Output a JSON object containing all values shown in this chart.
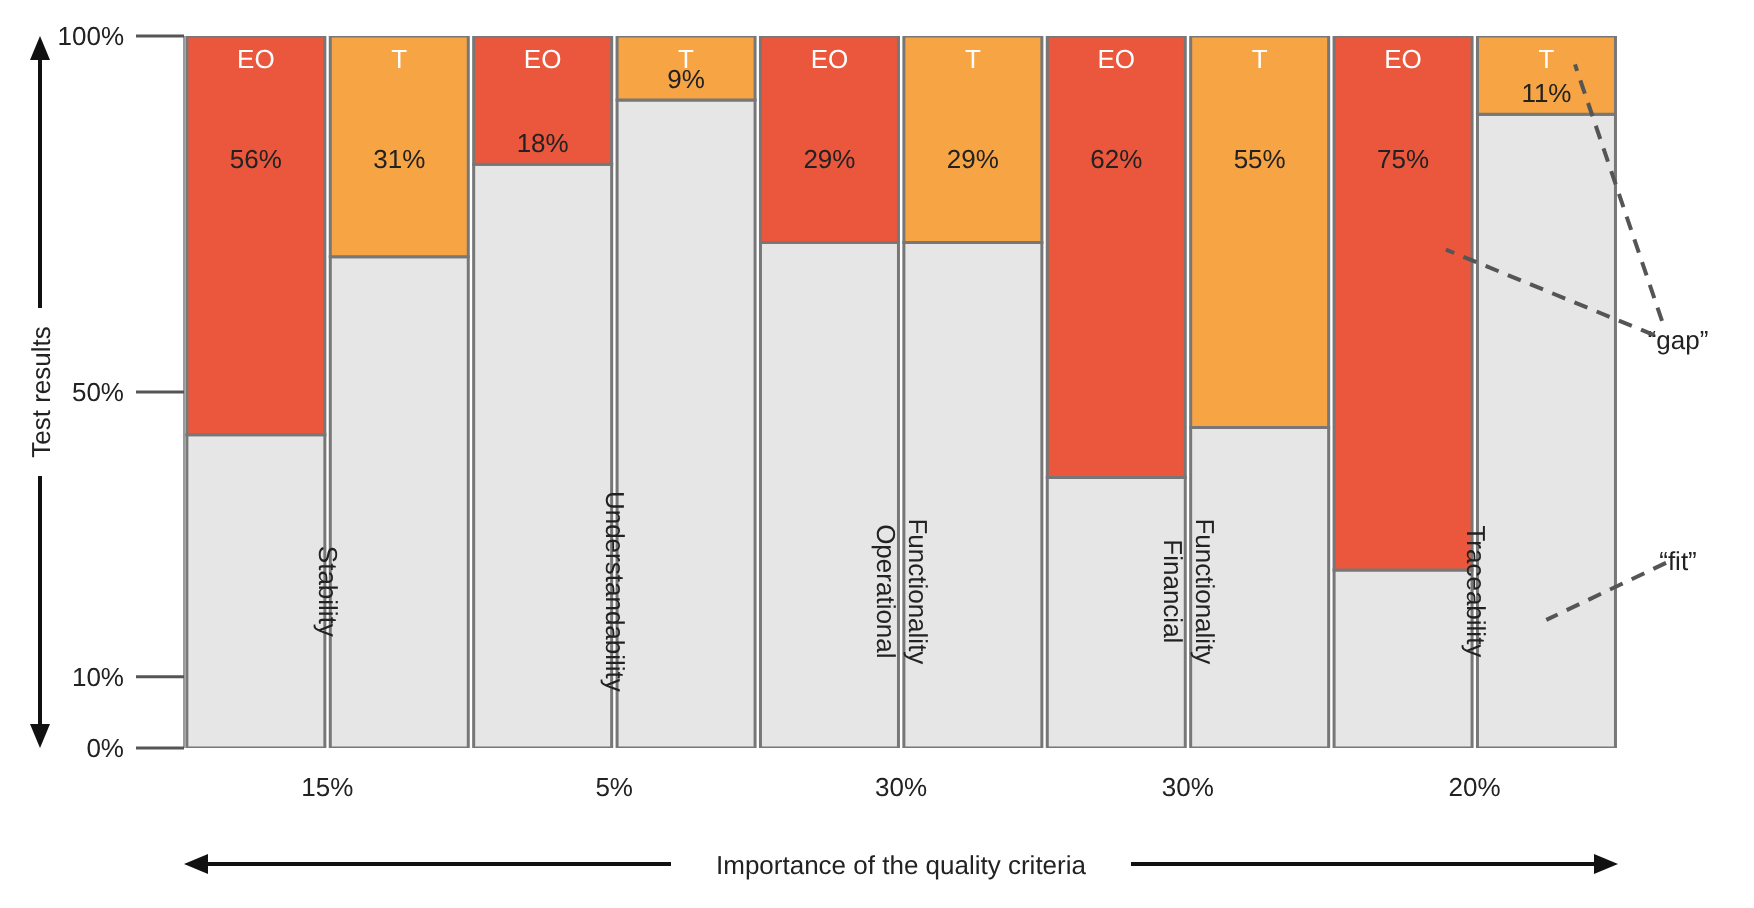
{
  "chart_data": {
    "type": "bar",
    "stacked": true,
    "ylabel": "Test results",
    "categories": [
      "EO",
      "T",
      "EO",
      "T",
      "EO",
      "T",
      "EO",
      "T",
      "EO",
      "T"
    ],
    "series": [
      {
        "color": "#e6e6e6",
        "values": [
          44,
          69,
          82,
          91,
          71,
          71,
          38,
          45,
          25,
          89
        ]
      },
      {
        "colors": [
          "#ea573d",
          "#f6a444",
          "#ea573d",
          "#f6a444",
          "#ea573d",
          "#f6a444",
          "#ea573d",
          "#f6a444",
          "#ea573d",
          "#f6a444"
        ],
        "values": [
          56,
          31,
          18,
          9,
          29,
          29,
          62,
          55,
          75,
          11
        ],
        "value_labels": [
          "56%",
          "31%",
          "18%",
          "9%",
          "29%",
          "29%",
          "62%",
          "55%",
          "75%",
          "11%"
        ]
      }
    ],
    "ylim": [
      0,
      100
    ],
    "yticks": [
      {
        "value": 0,
        "label": "0%"
      },
      {
        "value": 10,
        "label": "10%"
      },
      {
        "value": 50,
        "label": "50%"
      },
      {
        "value": 100,
        "label": "100%"
      }
    ],
    "tick_labels": "y",
    "annotations": [
      "Stability",
      "Understandability",
      "Functionality\nOperational",
      "Functionality\nFinancial",
      "Traceability",
      "15%",
      "5%",
      "30%",
      "30%",
      "20%",
      "“gap”",
      "“fit”",
      "Importance of the quality criteria"
    ]
  }
}
